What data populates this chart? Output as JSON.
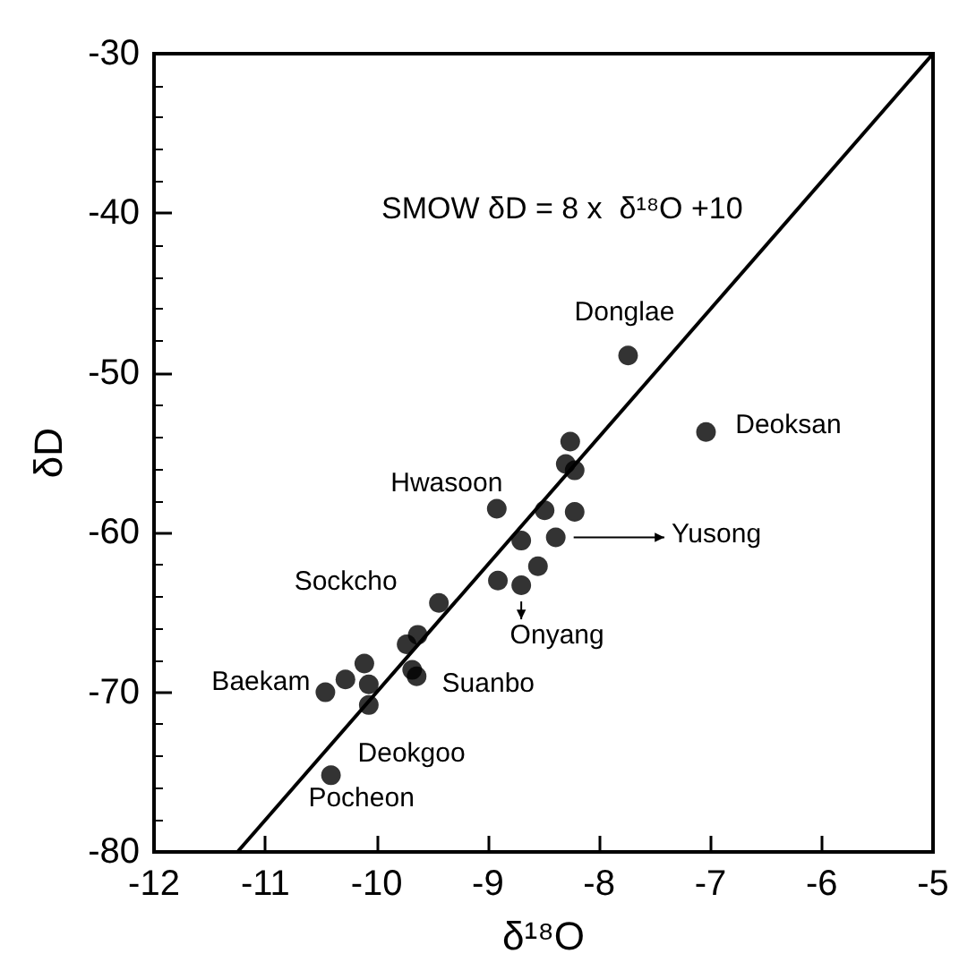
{
  "chart_data": {
    "type": "scatter",
    "xlabel": "δ¹⁸O",
    "ylabel": "δD",
    "x": [
      -7.74,
      -7.04,
      -8.26,
      -8.3,
      -8.22,
      -8.49,
      -8.22,
      -8.92,
      -8.7,
      -8.39,
      -8.55,
      -8.91,
      -8.7,
      -9.44,
      -9.63,
      -9.73,
      -9.68,
      -9.64,
      -10.11,
      -10.07,
      -10.28,
      -10.46,
      -10.07,
      -10.41
    ],
    "series": [
      {
        "color": "#000000",
        "values": [
          -48.9,
          -53.7,
          -54.3,
          -55.7,
          -56.1,
          -58.6,
          -58.7,
          -58.5,
          -60.5,
          -60.3,
          -62.1,
          -63.0,
          -63.3,
          -64.4,
          -66.4,
          -67.0,
          -68.6,
          -69.0,
          -68.2,
          -69.5,
          -69.2,
          -70.0,
          -70.8,
          -75.2
        ]
      },
      {
        "type": "line",
        "color": "#000000",
        "x": [
          -11.25,
          -5
        ],
        "values": [
          -80,
          -30
        ],
        "marker": "none"
      }
    ],
    "marker": "circle",
    "xlim": [
      -12,
      -5
    ],
    "xticks": [
      -12,
      -11,
      -10,
      -9,
      -8,
      -7,
      -6,
      -5
    ],
    "ylim": [
      -80,
      -30
    ],
    "yticks": [
      -80,
      -70,
      -60,
      -50,
      -40,
      -30
    ],
    "grid": false,
    "annotations": [
      "SMOW δD = 8 x  δ¹⁸O +10",
      {
        "text": "Donglae",
        "x": -7.74,
        "y": -48.9
      },
      {
        "text": "Deoksan",
        "x": -7.04,
        "y": -53.7
      },
      {
        "text": "Hwasoon",
        "x": -8.92,
        "y": -58.5
      },
      "Yusong",
      {
        "text": "Onyang",
        "x": -8.7,
        "y": -63.3
      },
      {
        "text": "Sockcho",
        "x": -9.44,
        "y": -64.4
      },
      {
        "text": "Baekam",
        "x": -10.46,
        "y": -70.0
      },
      {
        "text": "Suanbo",
        "x": -9.64,
        "y": -69.0
      },
      {
        "text": "Deokgoo",
        "x": -10.41,
        "y": -75.2
      },
      {
        "text": "Pocheon",
        "x": -10.41,
        "y": -75.2
      }
    ]
  }
}
